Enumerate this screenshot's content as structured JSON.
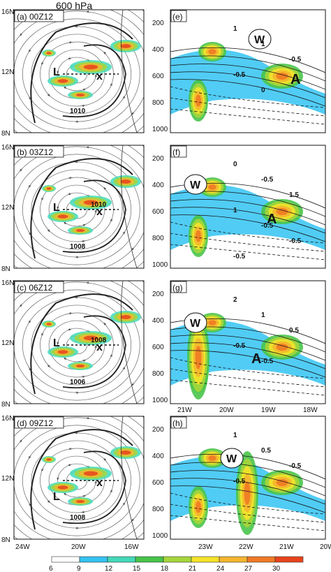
{
  "figure": {
    "title": "600 hPa",
    "panels_left": [
      {
        "label": "(a)",
        "time": "00Z12",
        "contours": [
          "1010"
        ],
        "L": "L",
        "x": "x"
      },
      {
        "label": "(b)",
        "time": "03Z12",
        "contours": [
          "1008",
          "1010"
        ],
        "L": "L",
        "x": "x"
      },
      {
        "label": "(c)",
        "time": "06Z12",
        "contours": [
          "1006",
          "1008"
        ],
        "L": "L",
        "x": "x"
      },
      {
        "label": "(d)",
        "time": "09Z12",
        "contours": [
          "1008"
        ],
        "L": "L",
        "x": "x"
      }
    ],
    "panels_right": [
      {
        "label": "(e)",
        "W": "W",
        "A": "A",
        "contours": [
          "1",
          "1",
          "-0.5",
          "-0.5",
          "0"
        ]
      },
      {
        "label": "(f)",
        "W": "W",
        "A": "A",
        "contours": [
          "0",
          "-0.5",
          "1.5",
          "1",
          "-0.5",
          "-0.5",
          "-0.5"
        ]
      },
      {
        "label": "(g)",
        "W": "W",
        "A": "A",
        "contours": [
          "2",
          "1",
          "0.5",
          "-0.5",
          "-0.5"
        ]
      },
      {
        "label": "(h)",
        "W": "W",
        "contours": [
          "1",
          "0.5",
          "-0.5",
          "-0.5"
        ]
      }
    ],
    "left_lat_ticks": [
      "16N",
      "12N",
      "8N"
    ],
    "left_lon_ticks": [
      "24W",
      "20W",
      "16W"
    ],
    "pressure_ticks": [
      "200",
      "400",
      "600",
      "800",
      "1000"
    ],
    "right_lon_ticks_g": [
      "21W",
      "20W",
      "19W",
      "18W"
    ],
    "right_lon_ticks_h": [
      "23W",
      "22W",
      "21W",
      "20W"
    ],
    "colorbar": {
      "ticks": [
        "6",
        "9",
        "12",
        "15",
        "18",
        "21",
        "24",
        "27",
        "30"
      ],
      "colors": [
        "#ffffff",
        "#33c3f2",
        "#43d9b8",
        "#49c44a",
        "#a6d63a",
        "#f5e32a",
        "#f5b62e",
        "#f07a24",
        "#e8431c"
      ]
    }
  }
}
